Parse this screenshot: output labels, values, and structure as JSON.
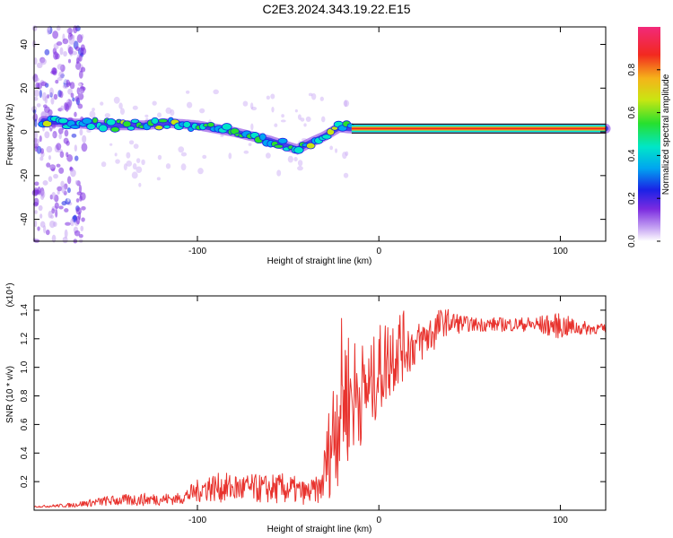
{
  "title": "C2E3.2024.343.19.22.E15",
  "chart_data": [
    {
      "type": "heatmap",
      "xlabel": "Height of straight line (km)",
      "ylabel": "Frequency (Hz)",
      "xlim": [
        -190,
        125
      ],
      "ylim": [
        -50,
        48
      ],
      "xticks": [
        -100,
        0,
        100
      ],
      "yticks": [
        -40,
        -20,
        0,
        20,
        40
      ],
      "colorbar": {
        "label": "Normalized spectral amplitude",
        "range": [
          0,
          1
        ],
        "ticks": [
          "0.0",
          "0.2",
          "0.4",
          "0.6",
          "0.8"
        ]
      },
      "ridge": {
        "x": [
          -185,
          -170,
          -150,
          -130,
          -115,
          -100,
          -80,
          -60,
          -45,
          -38,
          -30,
          -22,
          -15,
          0,
          50,
          100,
          125
        ],
        "y": [
          5,
          4,
          3,
          3,
          4,
          3,
          0,
          -4,
          -8,
          -5,
          -2,
          2,
          1.5,
          1.5,
          1.5,
          1.5,
          1.5
        ]
      },
      "ridge_peak_amplitude": 1.0,
      "scatter_region_x": [
        -190,
        -162
      ],
      "scatter_region_y": [
        -50,
        48
      ]
    },
    {
      "type": "line",
      "xlabel": "Height of straight line (km)",
      "ylabel": "SNR (10 * v/v)",
      "y_multiplier": "(x10⁴)",
      "xlim": [
        -190,
        125
      ],
      "ylim": [
        0,
        1.5
      ],
      "xticks": [
        -100,
        0,
        100
      ],
      "yticks": [
        "0.2",
        "0.4",
        "0.6",
        "0.8",
        "1.0",
        "1.2",
        "1.4"
      ],
      "color": "#e8332e",
      "envelope": {
        "x": [
          -190,
          -170,
          -150,
          -130,
          -110,
          -95,
          -80,
          -65,
          -50,
          -40,
          -32,
          -25,
          -20,
          -15,
          -10,
          -5,
          0,
          10,
          20,
          30,
          36,
          50,
          80,
          100,
          110,
          125
        ],
        "low": [
          0.02,
          0.02,
          0.03,
          0.03,
          0.04,
          0.06,
          0.05,
          0.05,
          0.04,
          0.04,
          0.05,
          0.1,
          0.25,
          0.35,
          0.45,
          0.55,
          0.65,
          0.85,
          1.0,
          1.1,
          1.22,
          1.25,
          1.25,
          1.2,
          1.22,
          1.24
        ],
        "high": [
          0.03,
          0.05,
          0.1,
          0.12,
          0.12,
          0.26,
          0.26,
          0.25,
          0.26,
          0.2,
          0.25,
          1.0,
          1.4,
          1.25,
          1.2,
          1.15,
          1.3,
          1.45,
          1.3,
          1.4,
          1.42,
          1.35,
          1.35,
          1.38,
          1.33,
          1.3
        ]
      }
    }
  ]
}
